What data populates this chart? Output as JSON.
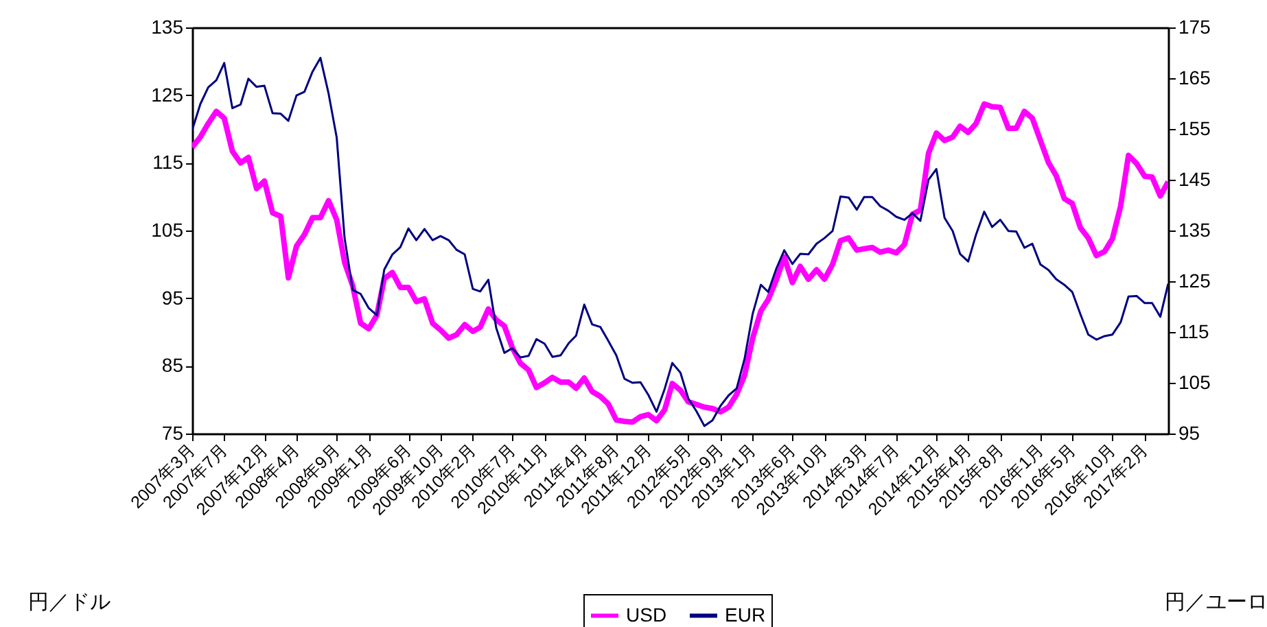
{
  "chart_data": {
    "type": "line",
    "xlabel": null,
    "ylabel": "円／ドル",
    "y2label": "円／ユーロ",
    "x": [
      "2007-03",
      "2007-04",
      "2007-05",
      "2007-06",
      "2007-07",
      "2007-08",
      "2007-09",
      "2007-10",
      "2007-11",
      "2007-12",
      "2008-01",
      "2008-02",
      "2008-03",
      "2008-04",
      "2008-05",
      "2008-06",
      "2008-07",
      "2008-08",
      "2008-09",
      "2008-10",
      "2008-11",
      "2008-12",
      "2009-01",
      "2009-02",
      "2009-03",
      "2009-04",
      "2009-05",
      "2009-06",
      "2009-07",
      "2009-08",
      "2009-09",
      "2009-10",
      "2009-11",
      "2009-12",
      "2010-01",
      "2010-02",
      "2010-03",
      "2010-04",
      "2010-05",
      "2010-06",
      "2010-07",
      "2010-08",
      "2010-09",
      "2010-10",
      "2010-11",
      "2010-12",
      "2011-01",
      "2011-02",
      "2011-03",
      "2011-04",
      "2011-05",
      "2011-06",
      "2011-07",
      "2011-08",
      "2011-09",
      "2011-10",
      "2011-11",
      "2011-12",
      "2012-01",
      "2012-02",
      "2012-03",
      "2012-04",
      "2012-05",
      "2012-06",
      "2012-07",
      "2012-08",
      "2012-09",
      "2012-10",
      "2012-11",
      "2012-12",
      "2013-01",
      "2013-02",
      "2013-03",
      "2013-04",
      "2013-05",
      "2013-06",
      "2013-07",
      "2013-08",
      "2013-09",
      "2013-10",
      "2013-11",
      "2013-12",
      "2014-01",
      "2014-02",
      "2014-03",
      "2014-04",
      "2014-05",
      "2014-06",
      "2014-07",
      "2014-08",
      "2014-09",
      "2014-10",
      "2014-11",
      "2014-12",
      "2015-01",
      "2015-02",
      "2015-03",
      "2015-04",
      "2015-05",
      "2015-06",
      "2015-07",
      "2015-08",
      "2015-09",
      "2015-10",
      "2015-11",
      "2015-12",
      "2016-01",
      "2016-02",
      "2016-03",
      "2016-04",
      "2016-05",
      "2016-06",
      "2016-07",
      "2016-08",
      "2016-09",
      "2016-10",
      "2016-11",
      "2016-12",
      "2017-01",
      "2017-02",
      "2017-03",
      "2017-04",
      "2017-05"
    ],
    "series": [
      {
        "name": "USD",
        "color": "#ff00ff",
        "values": [
          117.3,
          118.8,
          120.8,
          122.6,
          121.6,
          116.7,
          115.0,
          115.8,
          111.2,
          112.3,
          107.6,
          107.1,
          98.0,
          102.7,
          104.4,
          106.9,
          106.9,
          109.4,
          106.6,
          100.3,
          96.8,
          91.3,
          90.5,
          92.5,
          97.9,
          98.8,
          96.6,
          96.6,
          94.5,
          94.9,
          91.3,
          90.3,
          89.1,
          89.6,
          91.1,
          90.1,
          90.7,
          93.4,
          91.8,
          90.9,
          87.7,
          85.4,
          84.4,
          81.8,
          82.5,
          83.3,
          82.6,
          82.6,
          81.7,
          83.2,
          81.2,
          80.5,
          79.4,
          77.0,
          76.8,
          76.7,
          77.5,
          77.8,
          76.9,
          78.5,
          82.4,
          81.4,
          79.7,
          79.3,
          78.9,
          78.7,
          78.2,
          78.9,
          80.8,
          83.6,
          89.1,
          93.1,
          94.8,
          97.7,
          101.1,
          97.3,
          99.7,
          97.8,
          99.2,
          97.8,
          100.0,
          103.5,
          103.9,
          102.1,
          102.3,
          102.5,
          101.8,
          102.1,
          101.7,
          102.9,
          107.4,
          108.0,
          116.4,
          119.4,
          118.3,
          118.8,
          120.4,
          119.5,
          120.8,
          123.7,
          123.3,
          123.2,
          120.1,
          120.1,
          122.6,
          121.6,
          118.3,
          115.0,
          113.1,
          109.7,
          109.0,
          105.4,
          103.9,
          101.3,
          101.9,
          103.8,
          108.6,
          116.1,
          114.9,
          113.0,
          112.9,
          110.1,
          112.2
        ]
      },
      {
        "name": "EUR",
        "color": "#000080",
        "axis": "y2",
        "values": [
          154.8,
          159.9,
          163.2,
          164.6,
          168.0,
          159.1,
          159.8,
          164.9,
          163.3,
          163.5,
          158.1,
          158.0,
          156.6,
          161.6,
          162.3,
          166.3,
          169.0,
          162.0,
          153.3,
          133.5,
          123.3,
          122.5,
          119.7,
          118.3,
          127.3,
          130.3,
          131.7,
          135.4,
          133.1,
          135.3,
          133.1,
          133.9,
          133.1,
          131.2,
          130.3,
          123.5,
          123.0,
          125.3,
          115.8,
          110.9,
          111.8,
          110.0,
          110.3,
          113.6,
          112.7,
          110.1,
          110.4,
          112.8,
          114.3,
          120.4,
          116.5,
          116.0,
          113.3,
          110.4,
          105.8,
          105.0,
          105.1,
          102.6,
          99.3,
          103.8,
          108.9,
          107.0,
          101.9,
          99.4,
          96.5,
          97.6,
          100.5,
          102.5,
          103.9,
          109.7,
          118.6,
          124.3,
          122.9,
          127.5,
          131.1,
          128.4,
          130.4,
          130.3,
          132.4,
          133.5,
          134.9,
          141.7,
          141.5,
          139.1,
          141.6,
          141.6,
          139.8,
          138.9,
          137.7,
          137.1,
          138.4,
          136.9,
          145.0,
          147.1,
          137.5,
          134.9,
          130.4,
          128.9,
          134.2,
          138.7,
          135.7,
          137.1,
          134.9,
          134.8,
          131.6,
          132.4,
          128.3,
          127.2,
          125.4,
          124.3,
          122.9,
          118.5,
          114.5,
          113.5,
          114.2,
          114.5,
          116.9,
          122.0,
          122.1,
          120.7,
          120.7,
          118.0,
          124.5
        ]
      }
    ],
    "xlim": [
      "2007-03",
      "2017-05"
    ],
    "xticks": [
      {
        "value": "2007-03",
        "label": "2007年3月"
      },
      {
        "value": "2007-07",
        "label": "2007年7月"
      },
      {
        "value": "2007-12",
        "label": "2007年12月"
      },
      {
        "value": "2008-04",
        "label": "2008年4月"
      },
      {
        "value": "2008-09",
        "label": "2008年9月"
      },
      {
        "value": "2009-01",
        "label": "2009年1月"
      },
      {
        "value": "2009-06",
        "label": "2009年6月"
      },
      {
        "value": "2009-10",
        "label": "2009年10月"
      },
      {
        "value": "2010-02",
        "label": "2010年2月"
      },
      {
        "value": "2010-07",
        "label": "2010年7月"
      },
      {
        "value": "2010-11",
        "label": "2010年11月"
      },
      {
        "value": "2011-04",
        "label": "2011年4月"
      },
      {
        "value": "2011-08",
        "label": "2011年8月"
      },
      {
        "value": "2011-12",
        "label": "2011年12月"
      },
      {
        "value": "2012-05",
        "label": "2012年5月"
      },
      {
        "value": "2012-09",
        "label": "2012年9月"
      },
      {
        "value": "2013-01",
        "label": "2013年1月"
      },
      {
        "value": "2013-06",
        "label": "2013年6月"
      },
      {
        "value": "2013-10",
        "label": "2013年10月"
      },
      {
        "value": "2014-03",
        "label": "2014年3月"
      },
      {
        "value": "2014-07",
        "label": "2014年7月"
      },
      {
        "value": "2014-12",
        "label": "2014年12月"
      },
      {
        "value": "2015-04",
        "label": "2015年4月"
      },
      {
        "value": "2015-08",
        "label": "2015年8月"
      },
      {
        "value": "2016-01",
        "label": "2016年1月"
      },
      {
        "value": "2016-05",
        "label": "2016年5月"
      },
      {
        "value": "2016-10",
        "label": "2016年10月"
      },
      {
        "value": "2017-02",
        "label": "2017年2月"
      }
    ],
    "ylim": [
      75,
      135
    ],
    "yticks": [
      75,
      85,
      95,
      105,
      115,
      125,
      135
    ],
    "y2lim": [
      95,
      175
    ],
    "y2ticks": [
      95,
      105,
      115,
      125,
      135,
      145,
      155,
      165,
      175
    ],
    "grid": false,
    "legend": "bottom",
    "marker": "none",
    "line_style": "solid"
  }
}
